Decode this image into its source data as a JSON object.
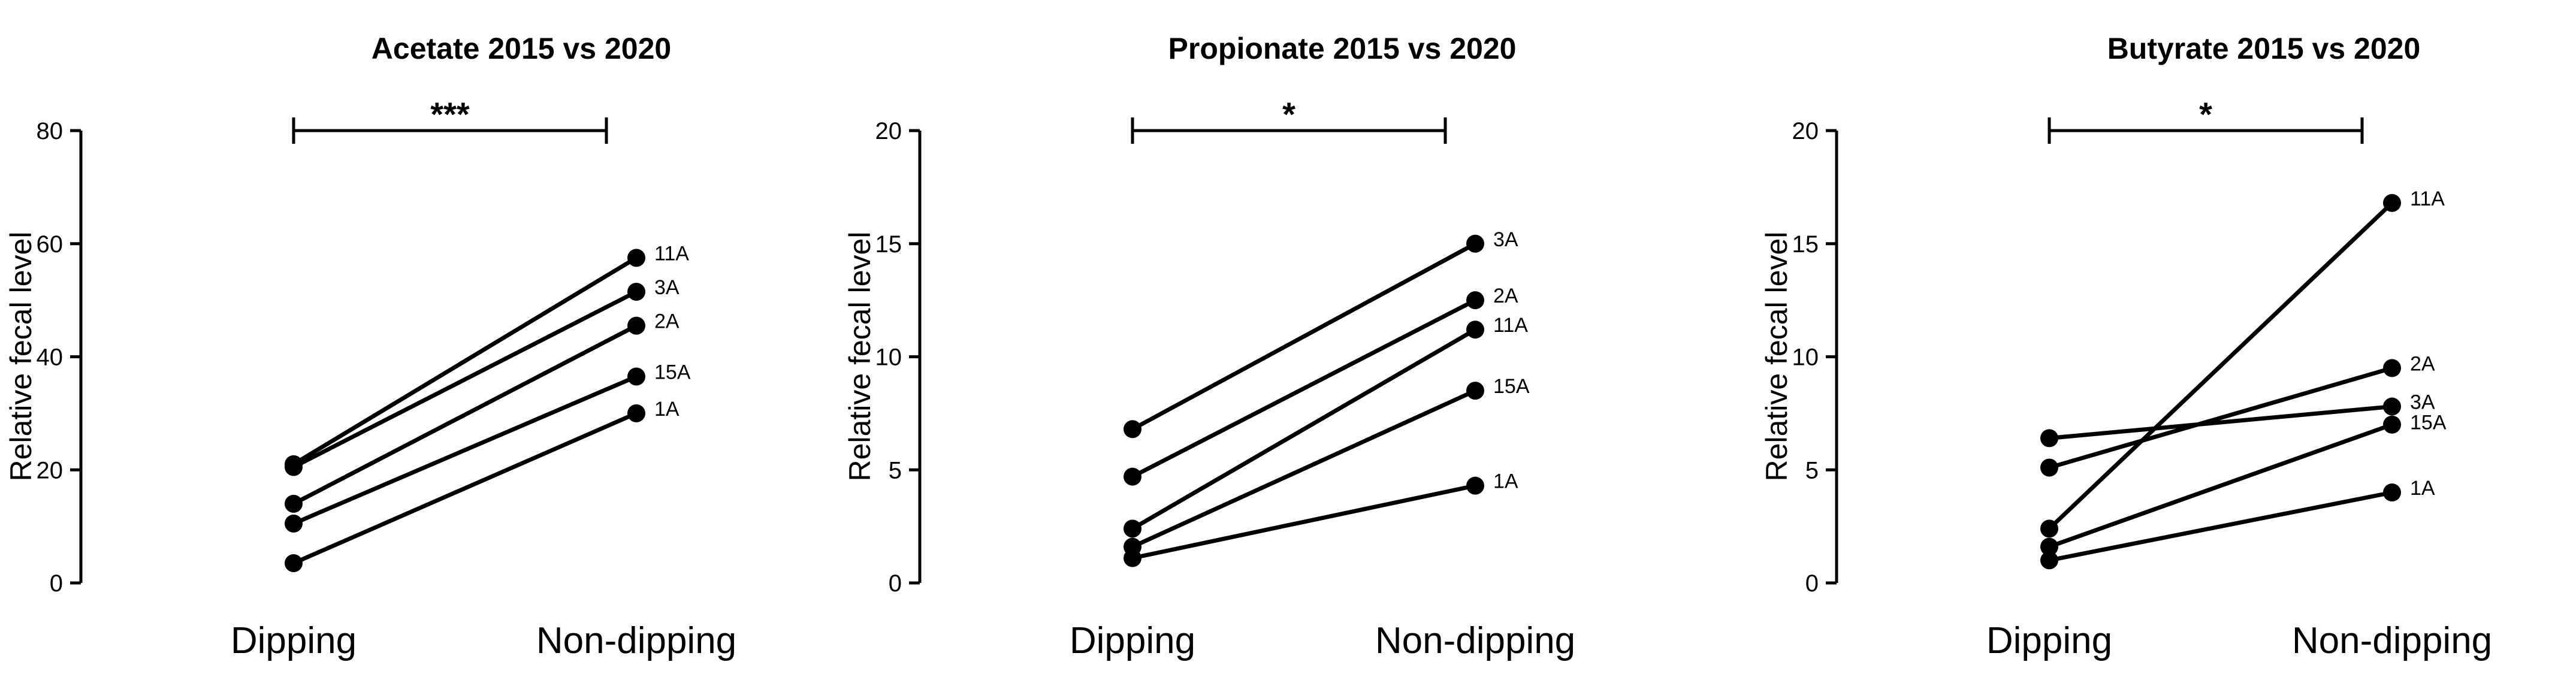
{
  "chart_data": [
    {
      "type": "line",
      "title": "Acetate  2015 vs 2020",
      "ylabel": "Relative fecal level",
      "xlabel": "",
      "categories": [
        "Dipping",
        "Non-dipping"
      ],
      "ylim": [
        0,
        80
      ],
      "yticks": [
        0,
        20,
        40,
        60,
        80
      ],
      "significance": "***",
      "series": [
        {
          "name": "11A",
          "values": [
            21,
            57.5
          ]
        },
        {
          "name": "3A",
          "values": [
            20.5,
            51.5
          ]
        },
        {
          "name": "2A",
          "values": [
            14,
            45.5
          ]
        },
        {
          "name": "15A",
          "values": [
            10.5,
            36.5
          ]
        },
        {
          "name": "1A",
          "values": [
            3.5,
            30
          ]
        }
      ]
    },
    {
      "type": "line",
      "title": "Propionate 2015 vs 2020",
      "ylabel": "Relative fecal level",
      "xlabel": "",
      "categories": [
        "Dipping",
        "Non-dipping"
      ],
      "ylim": [
        0,
        20
      ],
      "yticks": [
        0,
        5,
        10,
        15,
        20
      ],
      "significance": "*",
      "series": [
        {
          "name": "3A",
          "values": [
            6.8,
            15
          ]
        },
        {
          "name": "2A",
          "values": [
            4.7,
            12.5
          ]
        },
        {
          "name": "11A",
          "values": [
            2.4,
            11.2
          ]
        },
        {
          "name": "15A",
          "values": [
            1.6,
            8.5
          ]
        },
        {
          "name": "1A",
          "values": [
            1.1,
            4.3
          ]
        }
      ]
    },
    {
      "type": "line",
      "title": "Butyrate 2015 vs 2020",
      "ylabel": "Relative fecal level",
      "xlabel": "",
      "categories": [
        "Dipping",
        "Non-dipping"
      ],
      "ylim": [
        0,
        20
      ],
      "yticks": [
        0,
        5,
        10,
        15,
        20
      ],
      "significance": "*",
      "series": [
        {
          "name": "11A",
          "values": [
            2.4,
            16.8
          ]
        },
        {
          "name": "2A",
          "values": [
            5.1,
            9.5
          ]
        },
        {
          "name": "3A",
          "values": [
            6.4,
            7.8
          ]
        },
        {
          "name": "15A",
          "values": [
            1.6,
            7.0
          ]
        },
        {
          "name": "1A",
          "values": [
            1.0,
            4.0
          ]
        }
      ]
    }
  ]
}
